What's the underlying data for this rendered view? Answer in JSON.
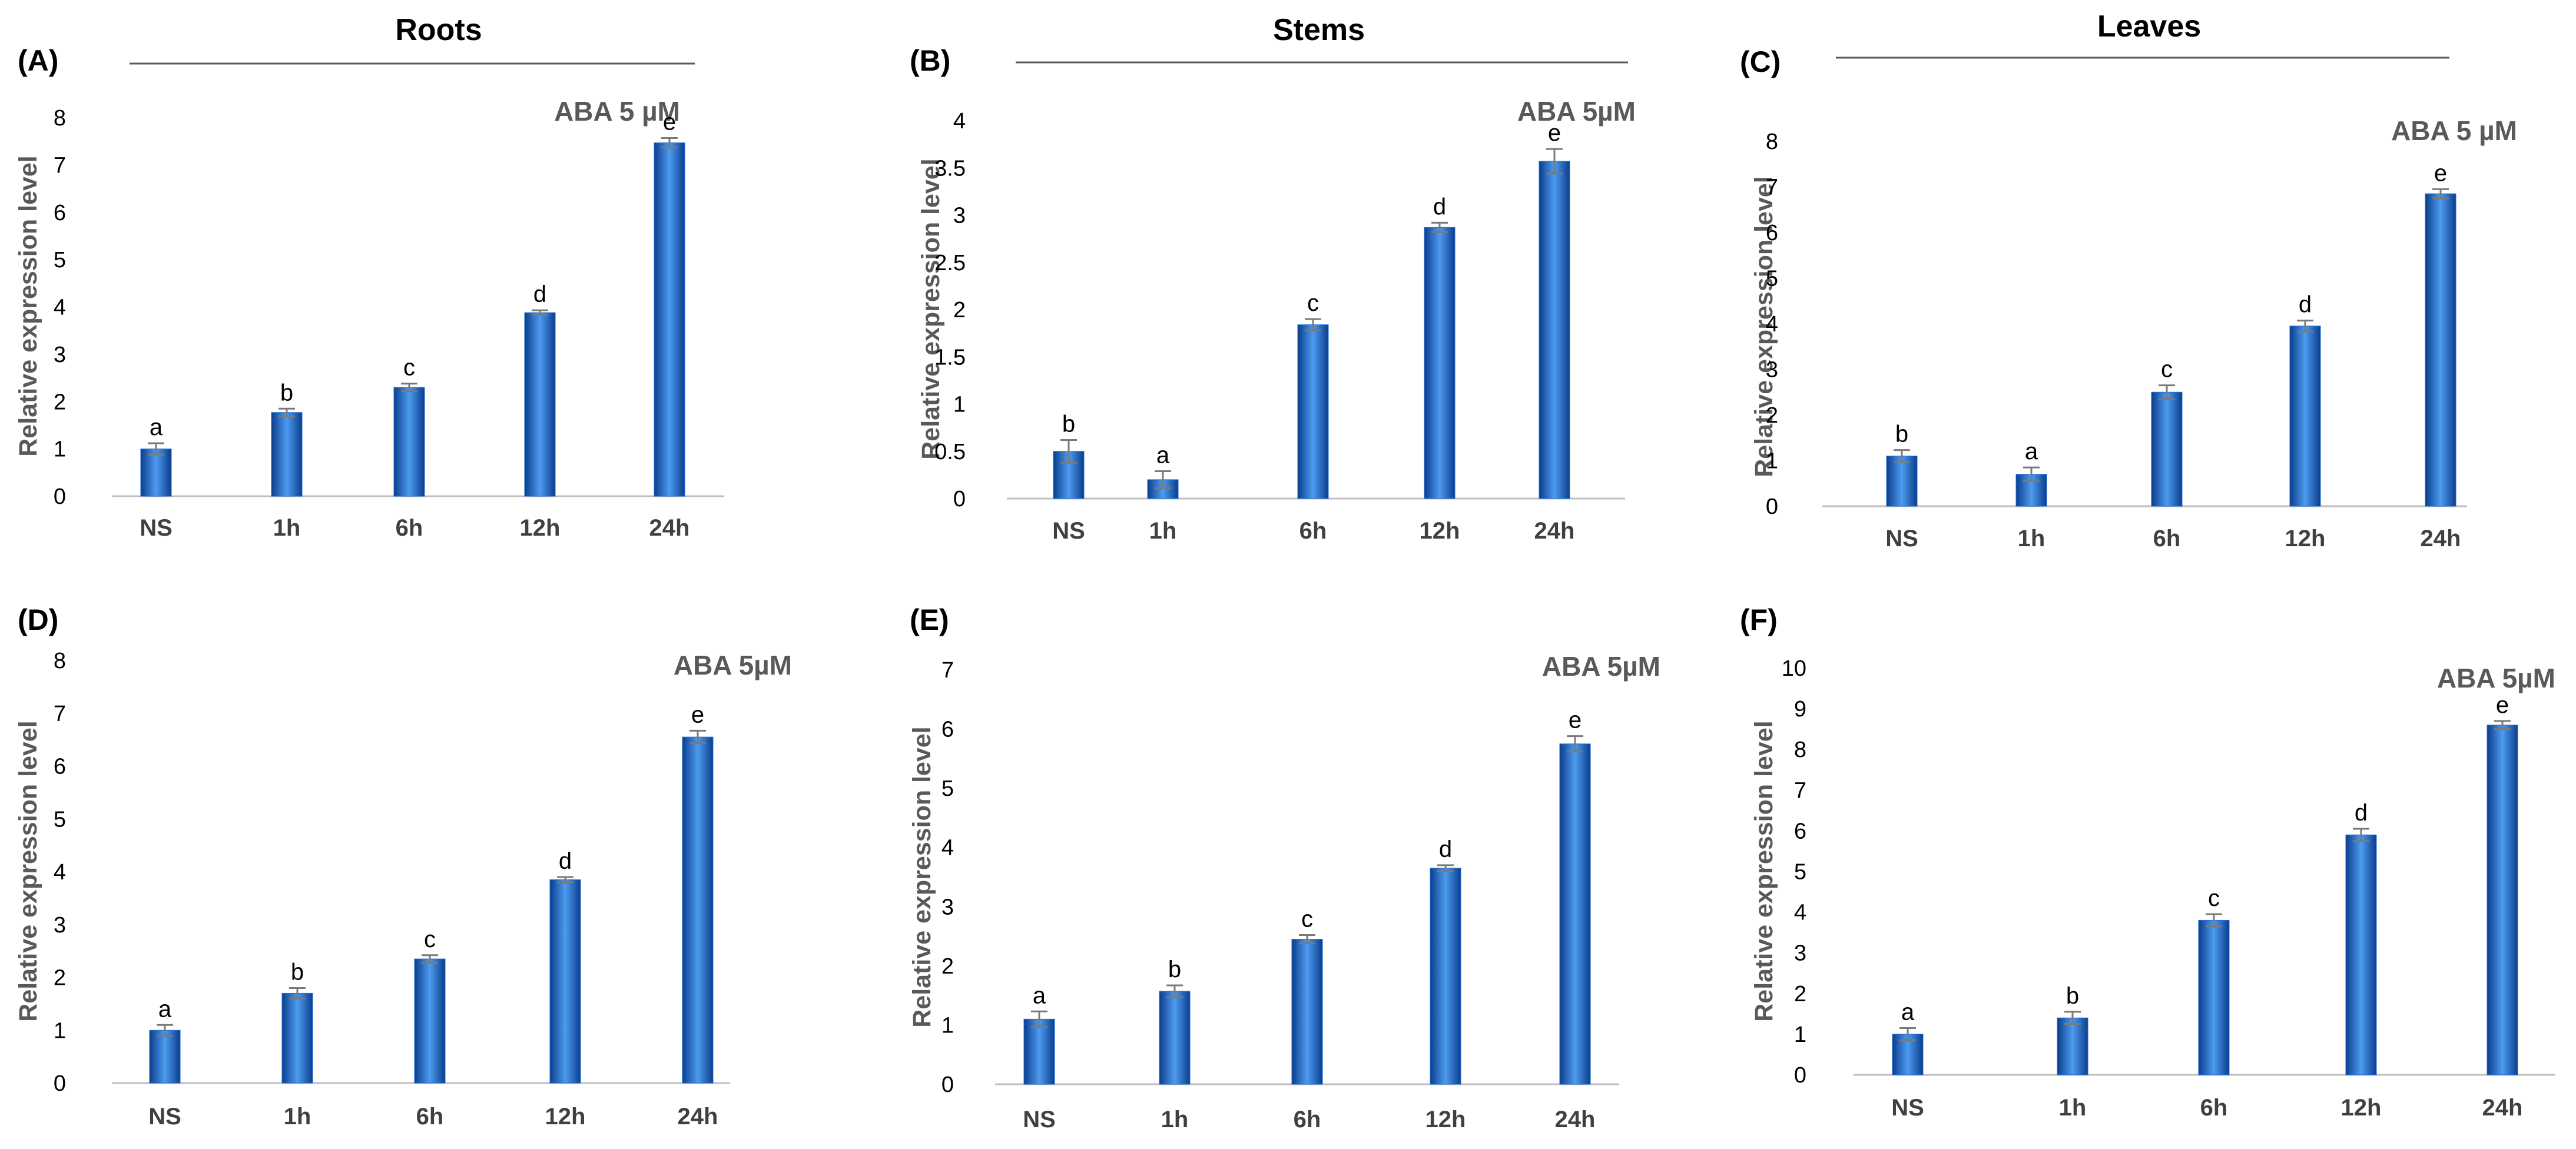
{
  "column_titles": [
    "Roots",
    "Stems",
    "Leaves"
  ],
  "colors": {
    "bar_dark": "#0b3d8c",
    "bar_mid": "#1f6fd9",
    "bar_light": "#4d9bf0",
    "error_bar": "#7a7a7a",
    "axis": "#bfbfbf",
    "title_rule": "#595959"
  },
  "chart_data": [
    {
      "type": "bar",
      "panel_label": "(A)",
      "annotation": "ABA 5 µM",
      "ylabel": "Relative expression level",
      "categories": [
        "NS",
        "1h",
        "6h",
        "12h",
        "24h"
      ],
      "values": [
        1.0,
        1.77,
        2.3,
        3.88,
        7.47
      ],
      "errors": [
        0.12,
        0.08,
        0.08,
        0.05,
        0.1
      ],
      "significance": [
        "a",
        "b",
        "c",
        "d",
        "e"
      ],
      "ylim": [
        0,
        8
      ],
      "yticks": [
        "0",
        "1",
        "2",
        "3",
        "4",
        "5",
        "6",
        "7",
        "8"
      ]
    },
    {
      "type": "bar",
      "panel_label": "(B)",
      "annotation": "ABA 5µM",
      "ylabel": "Relative expression level",
      "categories": [
        "NS",
        "1h",
        "6h",
        "12h",
        "24h"
      ],
      "values": [
        0.5,
        0.2,
        1.84,
        2.87,
        3.57
      ],
      "errors": [
        0.12,
        0.09,
        0.06,
        0.05,
        0.13
      ],
      "significance": [
        "b",
        "a",
        "c",
        "d",
        "e"
      ],
      "ylim": [
        0,
        4
      ],
      "yticks": [
        "0",
        "0.5",
        "1",
        "1.5",
        "2",
        "2.5",
        "3",
        "3.5",
        "4"
      ]
    },
    {
      "type": "bar",
      "panel_label": "(C)",
      "annotation": "ABA 5 µM",
      "ylabel": "Relative expression level",
      "categories": [
        "NS",
        "1h",
        "6h",
        "12h",
        "24h"
      ],
      "values": [
        1.1,
        0.7,
        2.5,
        3.95,
        6.85
      ],
      "errors": [
        0.13,
        0.15,
        0.15,
        0.12,
        0.1
      ],
      "significance": [
        "b",
        "a",
        "c",
        "d",
        "e"
      ],
      "ylim": [
        0,
        8
      ],
      "yticks": [
        "0",
        "1",
        "2",
        "3",
        "4",
        "5",
        "6",
        "7",
        "8"
      ]
    },
    {
      "type": "bar",
      "panel_label": "(D)",
      "annotation": "ABA 5µM",
      "ylabel": "Relative expression level",
      "categories": [
        "NS",
        "1h",
        "6h",
        "12h",
        "24h"
      ],
      "values": [
        1.0,
        1.7,
        2.35,
        3.85,
        6.55
      ],
      "errors": [
        0.1,
        0.1,
        0.07,
        0.05,
        0.12
      ],
      "significance": [
        "a",
        "b",
        "c",
        "d",
        "e"
      ],
      "ylim": [
        0,
        8
      ],
      "yticks": [
        "0",
        "1",
        "2",
        "3",
        "4",
        "5",
        "6",
        "7",
        "8"
      ]
    },
    {
      "type": "bar",
      "panel_label": "(E)",
      "annotation": "ABA 5µM",
      "ylabel": "Relative expression level",
      "categories": [
        "NS",
        "1h",
        "6h",
        "12h",
        "24h"
      ],
      "values": [
        1.1,
        1.57,
        2.45,
        3.65,
        5.75
      ],
      "errors": [
        0.13,
        0.1,
        0.07,
        0.05,
        0.13
      ],
      "significance": [
        "a",
        "b",
        "c",
        "d",
        "e"
      ],
      "ylim": [
        0,
        7
      ],
      "yticks": [
        "0",
        "1",
        "2",
        "3",
        "4",
        "5",
        "6",
        "7"
      ]
    },
    {
      "type": "bar",
      "panel_label": "(F)",
      "annotation": "ABA 5µM",
      "ylabel": "Relative expression level",
      "categories": [
        "NS",
        "1h",
        "6h",
        "12h",
        "24h"
      ],
      "values": [
        1.0,
        1.4,
        3.8,
        5.9,
        8.6
      ],
      "errors": [
        0.15,
        0.15,
        0.15,
        0.15,
        0.1
      ],
      "significance": [
        "a",
        "b",
        "c",
        "d",
        "e"
      ],
      "ylim": [
        0,
        10
      ],
      "yticks": [
        "0",
        "1",
        "2",
        "3",
        "4",
        "5",
        "6",
        "7",
        "8",
        "9",
        "10"
      ]
    }
  ]
}
